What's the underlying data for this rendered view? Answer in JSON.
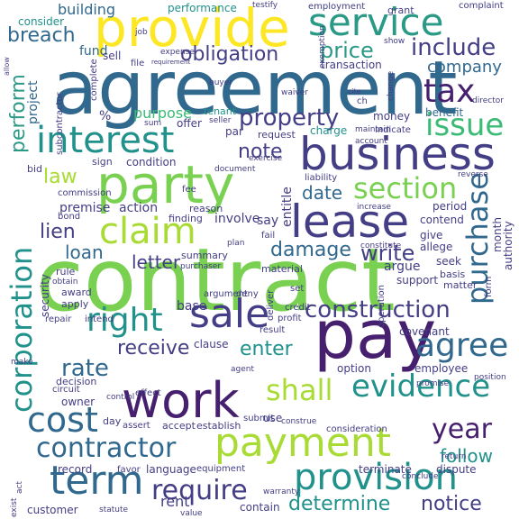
{
  "palette": {
    "dark_purple": "#46206e",
    "purple": "#433e85",
    "blue": "#31688e",
    "teal": "#21918c",
    "sea": "#2a9a86",
    "green": "#3bbb75",
    "light_green": "#7ad151",
    "lime": "#a8db34",
    "yellow": "#fde725"
  },
  "words": [
    {
      "text": "contract",
      "color": "#7ad151"
    },
    {
      "text": "agreement",
      "color": "#31688e"
    },
    {
      "text": "pay",
      "color": "#46206e"
    },
    {
      "text": "provide",
      "color": "#fde725"
    },
    {
      "text": "party",
      "color": "#7ad151"
    },
    {
      "text": "business",
      "color": "#433e85"
    },
    {
      "text": "work",
      "color": "#46206e"
    },
    {
      "text": "lease",
      "color": "#433e85"
    },
    {
      "text": "payment",
      "color": "#a8db34"
    },
    {
      "text": "service",
      "color": "#2a9a86"
    },
    {
      "text": "term",
      "color": "#31688e"
    },
    {
      "text": "provision",
      "color": "#21918c"
    },
    {
      "text": "sale",
      "color": "#433e85"
    },
    {
      "text": "interest",
      "color": "#21918c"
    },
    {
      "text": "claim",
      "color": "#a8db34"
    },
    {
      "text": "tax",
      "color": "#46206e"
    },
    {
      "text": "cost",
      "color": "#31688e"
    },
    {
      "text": "right",
      "color": "#21918c"
    },
    {
      "text": "issue",
      "color": "#3bbb75"
    },
    {
      "text": "section",
      "color": "#7ad151"
    },
    {
      "text": "evidence",
      "color": "#21918c"
    },
    {
      "text": "agree",
      "color": "#31688e"
    },
    {
      "text": "corporation",
      "color": "#21918c"
    },
    {
      "text": "contractor",
      "color": "#31688e"
    },
    {
      "text": "require",
      "color": "#433e85"
    },
    {
      "text": "construction",
      "color": "#433e85"
    },
    {
      "text": "shall",
      "color": "#a8db34"
    },
    {
      "text": "purchase",
      "color": "#31688e"
    },
    {
      "text": "property",
      "color": "#433e85"
    },
    {
      "text": "include",
      "color": "#433e85"
    },
    {
      "text": "year",
      "color": "#46206e"
    },
    {
      "text": "price",
      "color": "#2a9a86"
    },
    {
      "text": "obligation",
      "color": "#433e85"
    },
    {
      "text": "determine",
      "color": "#21918c"
    },
    {
      "text": "notice",
      "color": "#433e85"
    },
    {
      "text": "breach",
      "color": "#31688e"
    },
    {
      "text": "perform",
      "color": "#2a9a86"
    },
    {
      "text": "damage",
      "color": "#31688e"
    },
    {
      "text": "receive",
      "color": "#433e85"
    },
    {
      "text": "enter",
      "color": "#21918c"
    },
    {
      "text": "write",
      "color": "#433e85"
    },
    {
      "text": "note",
      "color": "#433e85"
    },
    {
      "text": "date",
      "color": "#31688e"
    },
    {
      "text": "lien",
      "color": "#433e85"
    },
    {
      "text": "law",
      "color": "#a8db34"
    },
    {
      "text": "rate",
      "color": "#31688e"
    },
    {
      "text": "letter",
      "color": "#433e85"
    },
    {
      "text": "loan",
      "color": "#31688e"
    },
    {
      "text": "follow",
      "color": "#21918c"
    },
    {
      "text": "company",
      "color": "#31688e"
    },
    {
      "text": "building",
      "color": "#31688e"
    },
    {
      "text": "performance",
      "color": "#21918c"
    },
    {
      "text": "employment",
      "color": "#433e85"
    },
    {
      "text": "complaint",
      "color": "#433e85"
    },
    {
      "text": "consider",
      "color": "#21918c"
    },
    {
      "text": "fund",
      "color": "#31688e"
    },
    {
      "text": "sell",
      "color": "#433e85"
    },
    {
      "text": "transaction",
      "color": "#433e85"
    },
    {
      "text": "project",
      "color": "#31688e"
    },
    {
      "text": "purpose",
      "color": "#3bbb75"
    },
    {
      "text": "tenant",
      "color": "#21918c"
    },
    {
      "text": "money",
      "color": "#433e85"
    },
    {
      "text": "benefit",
      "color": "#31688e"
    },
    {
      "text": "charge",
      "color": "#21918c"
    },
    {
      "text": "condition",
      "color": "#433e85"
    },
    {
      "text": "sign",
      "color": "#433e85"
    },
    {
      "text": "bid",
      "color": "#433e85"
    },
    {
      "text": "premise",
      "color": "#433e85"
    },
    {
      "text": "commission",
      "color": "#433e85"
    },
    {
      "text": "bond",
      "color": "#433e85"
    },
    {
      "text": "action",
      "color": "#433e85"
    },
    {
      "text": "fee",
      "color": "#433e85"
    },
    {
      "text": "reason",
      "color": "#433e85"
    },
    {
      "text": "finding",
      "color": "#433e85"
    },
    {
      "text": "involve",
      "color": "#433e85"
    },
    {
      "text": "say",
      "color": "#433e85"
    },
    {
      "text": "entitle",
      "color": "#433e85"
    },
    {
      "text": "period",
      "color": "#433e85"
    },
    {
      "text": "contend",
      "color": "#433e85"
    },
    {
      "text": "give",
      "color": "#433e85"
    },
    {
      "text": "allege",
      "color": "#433e85"
    },
    {
      "text": "month",
      "color": "#433e85"
    },
    {
      "text": "authority",
      "color": "#433e85"
    },
    {
      "text": "argue",
      "color": "#433e85"
    },
    {
      "text": "seek",
      "color": "#433e85"
    },
    {
      "text": "basis",
      "color": "#433e85"
    },
    {
      "text": "matter",
      "color": "#433e85"
    },
    {
      "text": "form",
      "color": "#433e85"
    },
    {
      "text": "support",
      "color": "#433e85"
    },
    {
      "text": "rule",
      "color": "#433e85"
    },
    {
      "text": "obtain",
      "color": "#433e85"
    },
    {
      "text": "summary",
      "color": "#433e85"
    },
    {
      "text": "purchaser",
      "color": "#433e85"
    },
    {
      "text": "material",
      "color": "#433e85"
    },
    {
      "text": "security",
      "color": "#433e85"
    },
    {
      "text": "award",
      "color": "#433e85"
    },
    {
      "text": "apply",
      "color": "#433e85"
    },
    {
      "text": "decision",
      "color": "#433e85"
    },
    {
      "text": "repair",
      "color": "#433e85"
    },
    {
      "text": "intend",
      "color": "#433e85"
    },
    {
      "text": "argument",
      "color": "#433e85"
    },
    {
      "text": "base",
      "color": "#433e85"
    },
    {
      "text": "deny",
      "color": "#433e85"
    },
    {
      "text": "set",
      "color": "#433e85"
    },
    {
      "text": "credit",
      "color": "#433e85"
    },
    {
      "text": "profit",
      "color": "#433e85"
    },
    {
      "text": "deliver",
      "color": "#433e85"
    },
    {
      "text": "result",
      "color": "#433e85"
    },
    {
      "text": "covenant",
      "color": "#433e85"
    },
    {
      "text": "position",
      "color": "#433e85"
    },
    {
      "text": "clause",
      "color": "#433e85"
    },
    {
      "text": "rent",
      "color": "#433e85"
    },
    {
      "text": "owner",
      "color": "#433e85"
    },
    {
      "text": "circuit",
      "color": "#433e85"
    },
    {
      "text": "effect",
      "color": "#433e85"
    },
    {
      "text": "control",
      "color": "#433e85"
    },
    {
      "text": "option",
      "color": "#433e85"
    },
    {
      "text": "employee",
      "color": "#433e85"
    },
    {
      "text": "promise",
      "color": "#433e85"
    },
    {
      "text": "grant",
      "color": "#433e85"
    },
    {
      "text": "day",
      "color": "#433e85"
    },
    {
      "text": "assert",
      "color": "#433e85"
    },
    {
      "text": "accept",
      "color": "#433e85"
    },
    {
      "text": "establish",
      "color": "#433e85"
    },
    {
      "text": "use",
      "color": "#433e85"
    },
    {
      "text": "submit",
      "color": "#433e85"
    },
    {
      "text": "construe",
      "color": "#433e85"
    },
    {
      "text": "consideration",
      "color": "#433e85"
    },
    {
      "text": "record",
      "color": "#433e85"
    },
    {
      "text": "favor",
      "color": "#433e85"
    },
    {
      "text": "language",
      "color": "#433e85"
    },
    {
      "text": "equipment",
      "color": "#433e85"
    },
    {
      "text": "terminate",
      "color": "#433e85"
    },
    {
      "text": "dispute",
      "color": "#433e85"
    },
    {
      "text": "conclude",
      "color": "#433e85"
    },
    {
      "text": "return",
      "color": "#433e85"
    },
    {
      "text": "warranty",
      "color": "#433e85"
    },
    {
      "text": "customer",
      "color": "#433e85"
    },
    {
      "text": "statute",
      "color": "#433e85"
    },
    {
      "text": "value",
      "color": "#433e85"
    },
    {
      "text": "contain",
      "color": "#433e85"
    },
    {
      "text": "exist",
      "color": "#433e85"
    },
    {
      "text": "act",
      "color": "#433e85"
    },
    {
      "text": "make",
      "color": "#433e85"
    },
    {
      "text": "agent",
      "color": "#433e85"
    },
    {
      "text": "plan",
      "color": "#433e85"
    },
    {
      "text": "fail",
      "color": "#433e85"
    },
    {
      "text": "liability",
      "color": "#433e85"
    },
    {
      "text": "increase",
      "color": "#433e85"
    },
    {
      "text": "constitute",
      "color": "#433e85"
    },
    {
      "text": "maintain",
      "color": "#433e85"
    },
    {
      "text": "exercise",
      "color": "#433e85"
    },
    {
      "text": "document",
      "color": "#433e85"
    },
    {
      "text": "operation",
      "color": "#433e85"
    },
    {
      "text": "reverse",
      "color": "#433e85"
    },
    {
      "text": "request",
      "color": "#433e85"
    },
    {
      "text": "indicate",
      "color": "#433e85"
    },
    {
      "text": "account",
      "color": "#433e85"
    },
    {
      "text": "sum",
      "color": "#433e85"
    },
    {
      "text": "offer",
      "color": "#433e85"
    },
    {
      "text": "par",
      "color": "#433e85"
    },
    {
      "text": "seller",
      "color": "#433e85"
    },
    {
      "text": "buyer",
      "color": "#433e85"
    },
    {
      "text": "waiver",
      "color": "#433e85"
    },
    {
      "text": "expense",
      "color": "#433e85"
    },
    {
      "text": "file",
      "color": "#433e85"
    },
    {
      "text": "requirement",
      "color": "#433e85"
    },
    {
      "text": "subcontractor",
      "color": "#433e85"
    },
    {
      "text": "complete",
      "color": "#433e85"
    },
    {
      "text": "job",
      "color": "#433e85"
    },
    {
      "text": "exemption",
      "color": "#433e85"
    },
    {
      "text": "show",
      "color": "#433e85"
    },
    {
      "text": "director",
      "color": "#433e85"
    },
    {
      "text": "change",
      "color": "#433e85"
    },
    {
      "text": "cite",
      "color": "#433e85"
    },
    {
      "text": "testify",
      "color": "#433e85"
    },
    {
      "text": "%",
      "color": "#433e85"
    },
    {
      "text": "ch",
      "color": "#433e85"
    },
    {
      "text": "allow",
      "color": "#433e85"
    }
  ]
}
